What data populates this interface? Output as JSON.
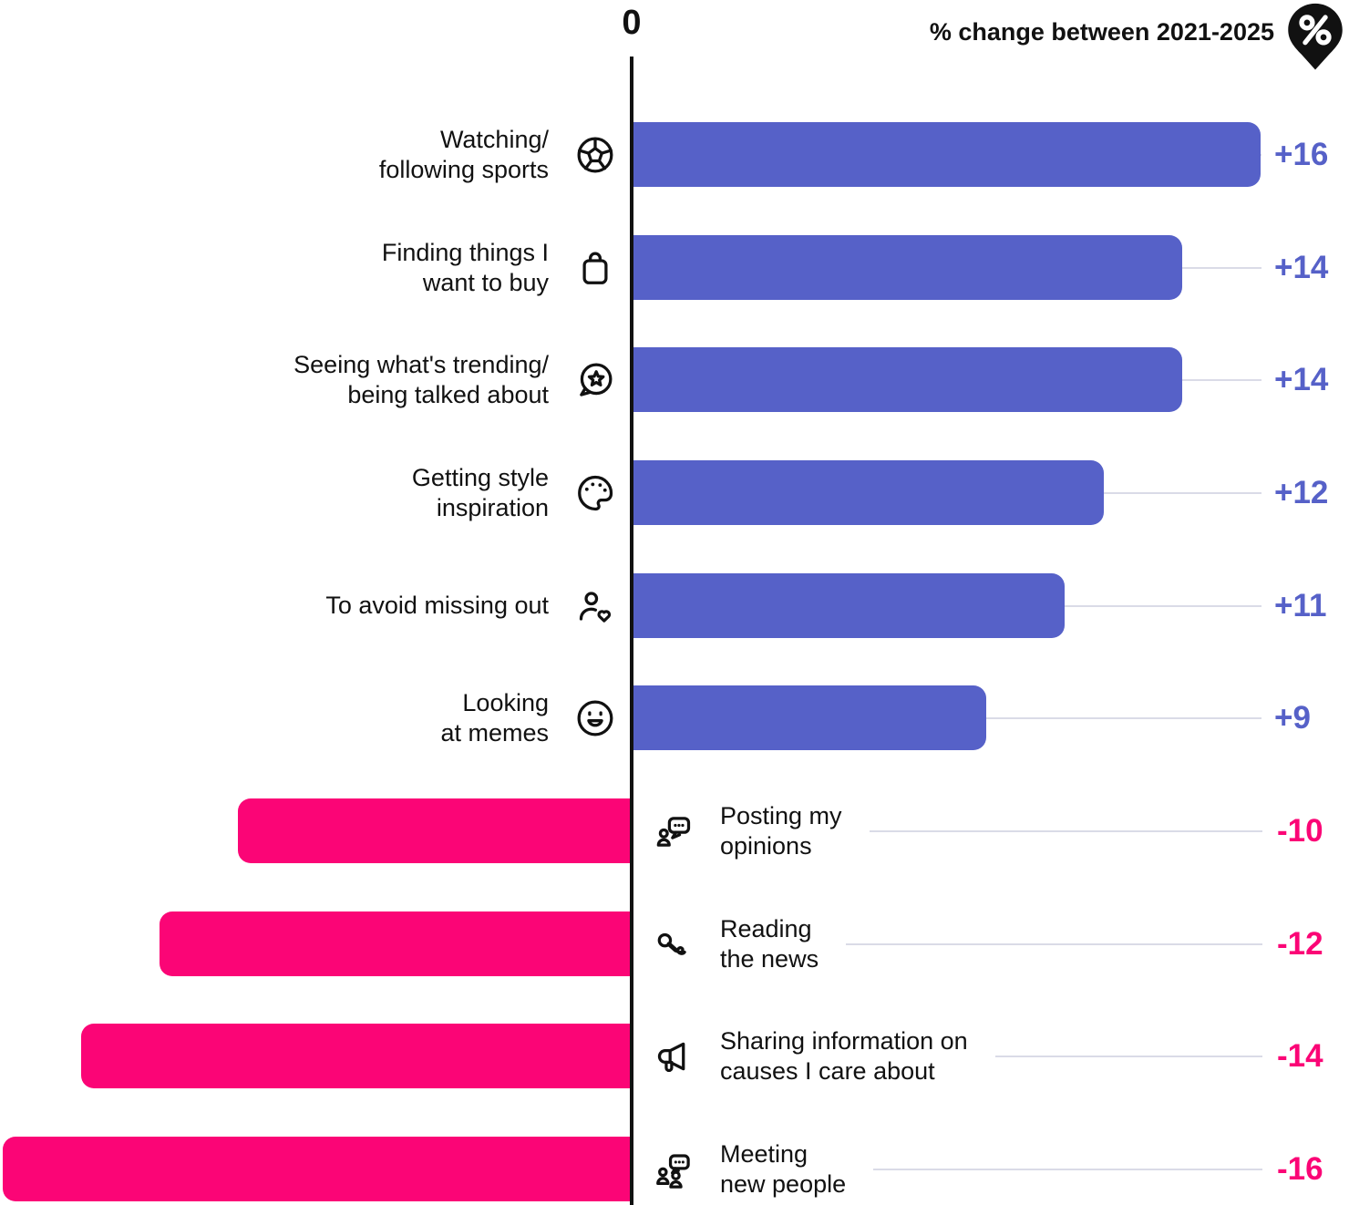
{
  "header": {
    "zero_label": "0",
    "title": "% change between 2021-2025",
    "pin_icon": "percent-pin-icon"
  },
  "colors": {
    "positive": "#5661C8",
    "negative": "#FB0576",
    "connector": "#DADBE7",
    "axis": "#111111",
    "text": "#111111"
  },
  "chart_data": {
    "type": "bar",
    "orientation": "diverging-horizontal",
    "title": "% change between 2021-2025",
    "xlabel": "% change",
    "axis_zero_label": "0",
    "xlim": [
      -16,
      16
    ],
    "grid": false,
    "legend": false,
    "rows": [
      {
        "label": "Watching/ following sports",
        "label_line1": "Watching/",
        "label_line2": "following sports",
        "icon": "football-icon",
        "value": 16,
        "value_label": "+16"
      },
      {
        "label": "Finding things I want to buy",
        "label_line1": "Finding things I",
        "label_line2": "want to buy",
        "icon": "shopping-bag-icon",
        "value": 14,
        "value_label": "+14"
      },
      {
        "label": "Seeing what's trending/ being talked about",
        "label_line1": "Seeing what's trending/",
        "label_line2": "being talked about",
        "icon": "trending-chat-icon",
        "value": 14,
        "value_label": "+14"
      },
      {
        "label": "Getting style inspiration",
        "label_line1": "Getting style",
        "label_line2": "inspiration",
        "icon": "palette-icon",
        "value": 12,
        "value_label": "+12"
      },
      {
        "label": "To avoid missing out",
        "label_line1": "To avoid missing out",
        "label_line2": "",
        "icon": "person-heart-icon",
        "value": 11,
        "value_label": "+11"
      },
      {
        "label": "Looking at memes",
        "label_line1": "Looking",
        "label_line2": "at memes",
        "icon": "smiley-icon",
        "value": 9,
        "value_label": "+9"
      },
      {
        "label": "Posting my opinions",
        "label_line1": "Posting my",
        "label_line2": "opinions",
        "icon": "person-chat-icon",
        "value": -10,
        "value_label": "-10"
      },
      {
        "label": "Reading the news",
        "label_line1": "Reading",
        "label_line2": "the news",
        "icon": "microphone-icon",
        "value": -12,
        "value_label": "-12"
      },
      {
        "label": "Sharing information on causes I care about",
        "label_line1": "Sharing information on",
        "label_line2": "causes I care about",
        "icon": "megaphone-icon",
        "value": -14,
        "value_label": "-14"
      },
      {
        "label": "Meeting new people",
        "label_line1": "Meeting",
        "label_line2": "new people",
        "icon": "people-chat-icon",
        "value": -16,
        "value_label": "-16"
      }
    ]
  }
}
